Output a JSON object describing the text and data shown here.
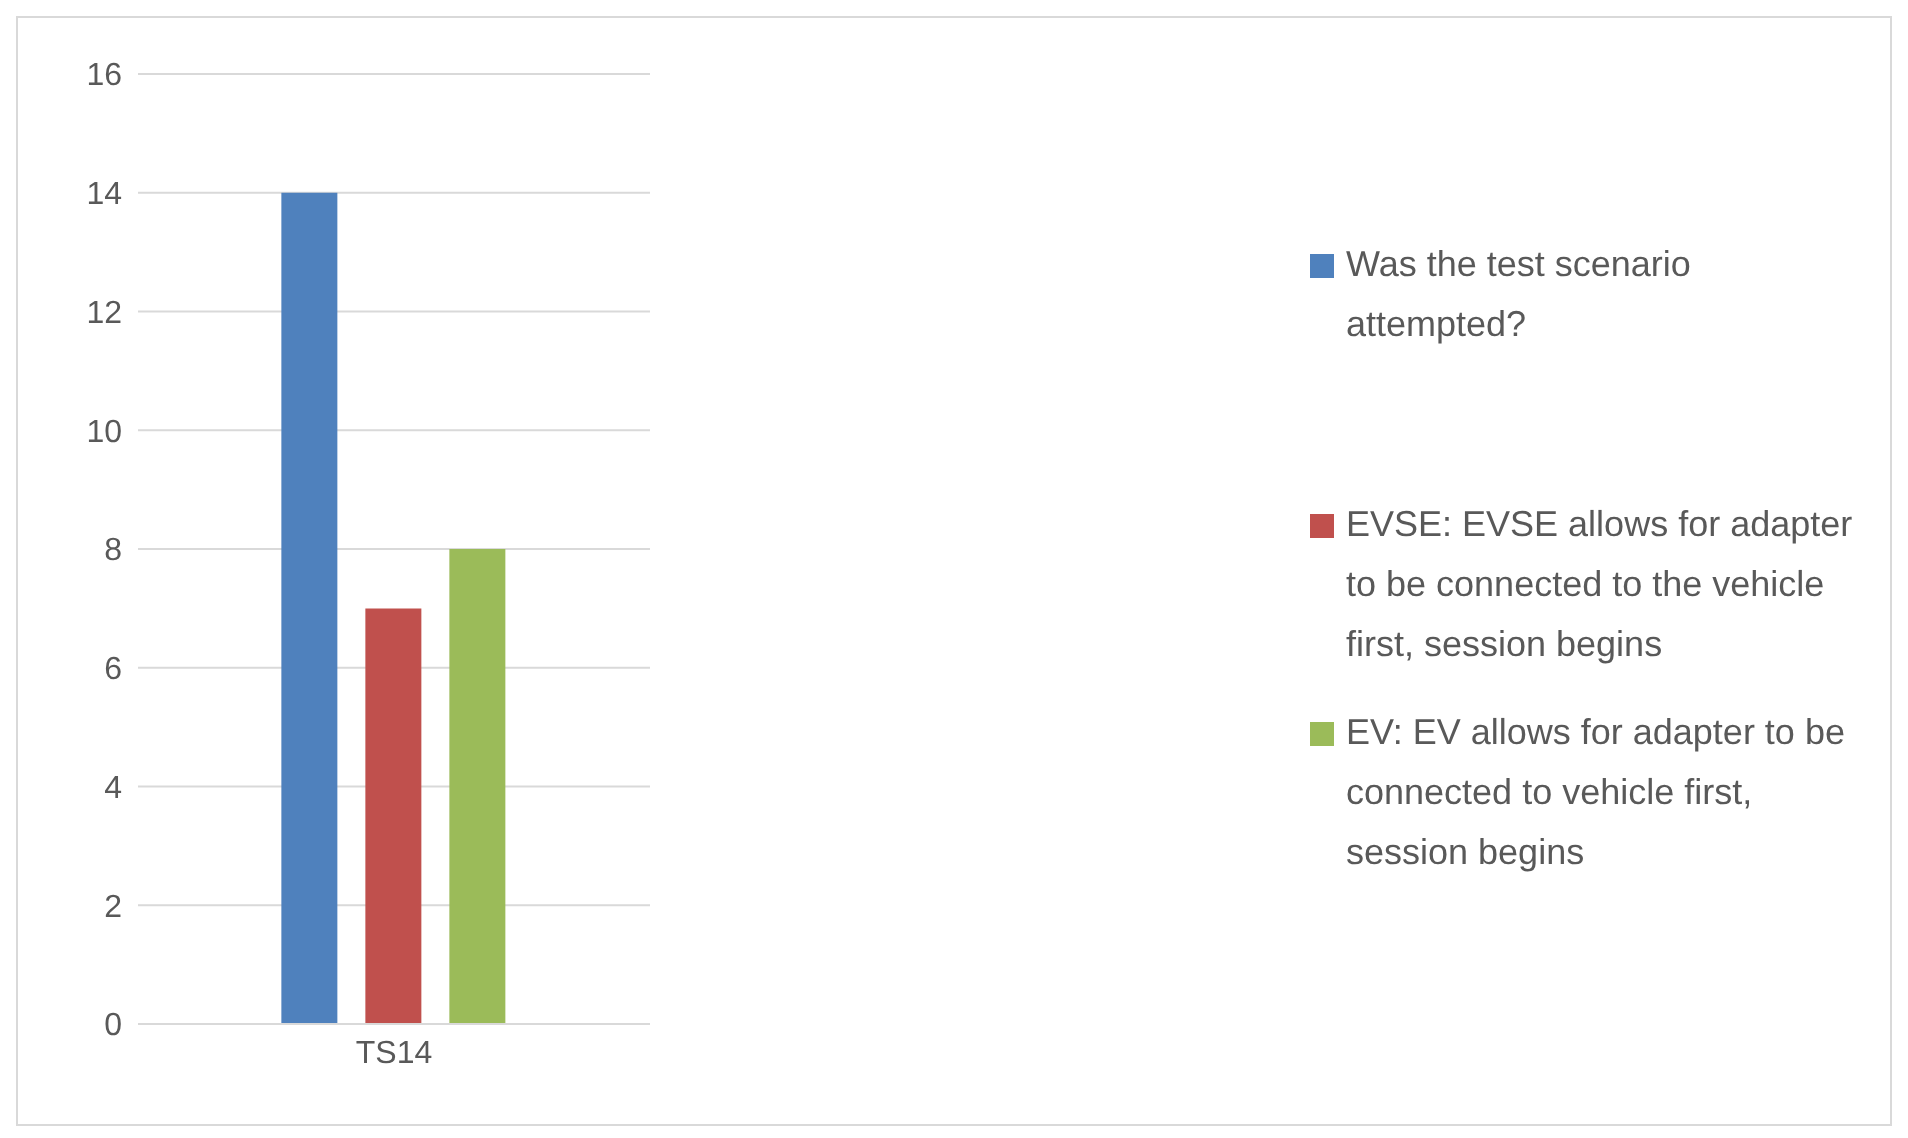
{
  "chart_data": {
    "type": "bar",
    "categories": [
      "TS14"
    ],
    "series": [
      {
        "name": "Was the test scenario attempted?",
        "color": "#4f81bd",
        "values": [
          14
        ]
      },
      {
        "name": "EVSE: EVSE allows for adapter to be connected to the vehicle first, session begins",
        "color": "#c0504d",
        "values": [
          7
        ]
      },
      {
        "name": "EV: EV allows for adapter to be connected to vehicle first, session begins",
        "color": "#9bbb59",
        "values": [
          8
        ]
      }
    ],
    "ylim": [
      0,
      16
    ],
    "yticks": [
      0,
      2,
      4,
      6,
      8,
      10,
      12,
      14,
      16
    ],
    "grid": "y",
    "legend": "right"
  }
}
